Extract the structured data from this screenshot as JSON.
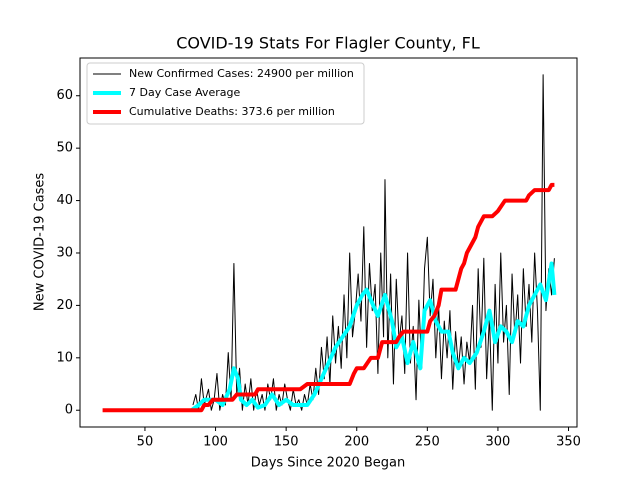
{
  "chart_data": {
    "type": "line",
    "title": "COVID-19 Stats For Flagler County, FL",
    "xlabel": "Days Since 2020 Began",
    "ylabel": "New COVID-19 Cases",
    "xlim": [
      4,
      356
    ],
    "xticks": [
      50,
      100,
      150,
      200,
      250,
      300,
      350
    ],
    "ylim": [
      -3.2,
      67.2
    ],
    "yticks": [
      0,
      10,
      20,
      30,
      40,
      50,
      60
    ],
    "legend": "upper left",
    "series": [
      {
        "name": "New Confirmed Cases: 24900 per million",
        "color": "#000000",
        "width": 1,
        "x": [
          84,
          86,
          88,
          90,
          92,
          95,
          97,
          99,
          101,
          103,
          105,
          107,
          109,
          111,
          113,
          115,
          117,
          119,
          121,
          123,
          125,
          127,
          129,
          131,
          133,
          135,
          137,
          139,
          141,
          143,
          145,
          147,
          149,
          151,
          153,
          155,
          157,
          159,
          161,
          163,
          165,
          167,
          169,
          171,
          173,
          175,
          177,
          179,
          181,
          183,
          185,
          187,
          189,
          191,
          193,
          195,
          197,
          199,
          201,
          203,
          205,
          207,
          209,
          211,
          213,
          215,
          217,
          219,
          220,
          222,
          224,
          226,
          228,
          230,
          232,
          234,
          236,
          238,
          240,
          242,
          244,
          246,
          248,
          250,
          252,
          254,
          256,
          258,
          260,
          262,
          264,
          266,
          268,
          270,
          272,
          274,
          276,
          278,
          280,
          282,
          284,
          286,
          288,
          290,
          292,
          294,
          296,
          298,
          300,
          302,
          304,
          306,
          308,
          310,
          312,
          314,
          316,
          318,
          320,
          322,
          324,
          326,
          328,
          330,
          332,
          334,
          336,
          338,
          340
        ],
        "values": [
          1,
          3,
          0,
          6,
          1,
          4,
          0,
          2,
          7,
          0,
          3,
          1,
          11,
          2,
          28,
          3,
          8,
          0,
          5,
          1,
          6,
          0,
          4,
          1,
          3,
          0,
          5,
          2,
          6,
          0,
          3,
          1,
          5,
          2,
          0,
          4,
          1,
          2,
          0,
          3,
          1,
          5,
          2,
          8,
          3,
          12,
          6,
          14,
          5,
          18,
          9,
          16,
          8,
          22,
          10,
          30,
          14,
          19,
          26,
          17,
          35,
          12,
          28,
          19,
          24,
          7,
          30,
          14,
          44,
          10,
          26,
          5,
          25,
          13,
          18,
          7,
          30,
          9,
          16,
          2,
          21,
          8,
          27,
          33,
          18,
          25,
          10,
          20,
          6,
          17,
          10,
          19,
          4,
          15,
          8,
          14,
          5,
          13,
          9,
          20,
          4,
          27,
          12,
          29,
          6,
          18,
          0,
          24,
          9,
          30,
          13,
          20,
          3,
          26,
          14,
          22,
          9,
          27,
          16,
          24,
          13,
          30,
          19,
          0,
          64,
          19,
          27,
          22,
          29
        ]
      },
      {
        "name": "7 Day Case Average",
        "color": "#00ffff",
        "width": 4,
        "x": [
          83,
          88,
          92,
          100,
          105,
          110,
          113,
          116,
          118,
          122,
          126,
          130,
          135,
          140,
          145,
          150,
          155,
          160,
          165,
          170,
          175,
          180,
          185,
          190,
          195,
          200,
          204,
          207,
          210,
          215,
          220,
          225,
          228,
          232,
          236,
          240,
          245,
          248,
          252,
          256,
          260,
          265,
          268,
          272,
          276,
          280,
          285,
          290,
          294,
          298,
          302,
          306,
          310,
          314,
          318,
          322,
          326,
          330,
          334,
          338,
          340
        ],
        "values": [
          0,
          1,
          2,
          2,
          1,
          4,
          8,
          6,
          2,
          1,
          2,
          0.5,
          1,
          3,
          1,
          2,
          1,
          1,
          1,
          3,
          6,
          9,
          12,
          14,
          16,
          20,
          22,
          23,
          21,
          18,
          22,
          17,
          12,
          14,
          9,
          13,
          8,
          19,
          21,
          17,
          15,
          15,
          11,
          8,
          10,
          9,
          11,
          15,
          19,
          13,
          16,
          15,
          13,
          17,
          16,
          20,
          22,
          24,
          21,
          28,
          22
        ]
      },
      {
        "name": "Cumulative Deaths: 373.6 per million",
        "color": "#ff0000",
        "width": 4,
        "x": [
          20,
          90,
          92,
          95,
          98,
          108,
          112,
          115,
          128,
          130,
          160,
          165,
          195,
          198,
          200,
          205,
          210,
          215,
          218,
          228,
          230,
          233,
          250,
          252,
          255,
          258,
          260,
          270,
          272,
          274,
          276,
          278,
          280,
          282,
          284,
          286,
          290,
          296,
          300,
          305,
          320,
          322,
          326,
          336,
          338,
          340
        ],
        "values": [
          0,
          0,
          1,
          1,
          2,
          2,
          2,
          3,
          3,
          4,
          4,
          5,
          5,
          7,
          8,
          8,
          10,
          10,
          13,
          13,
          14,
          15,
          15,
          17,
          18,
          20,
          23,
          23,
          25,
          27,
          28,
          30,
          31,
          32,
          33,
          35,
          37,
          37,
          38,
          40,
          40,
          41,
          42,
          42,
          43,
          43
        ]
      }
    ]
  }
}
